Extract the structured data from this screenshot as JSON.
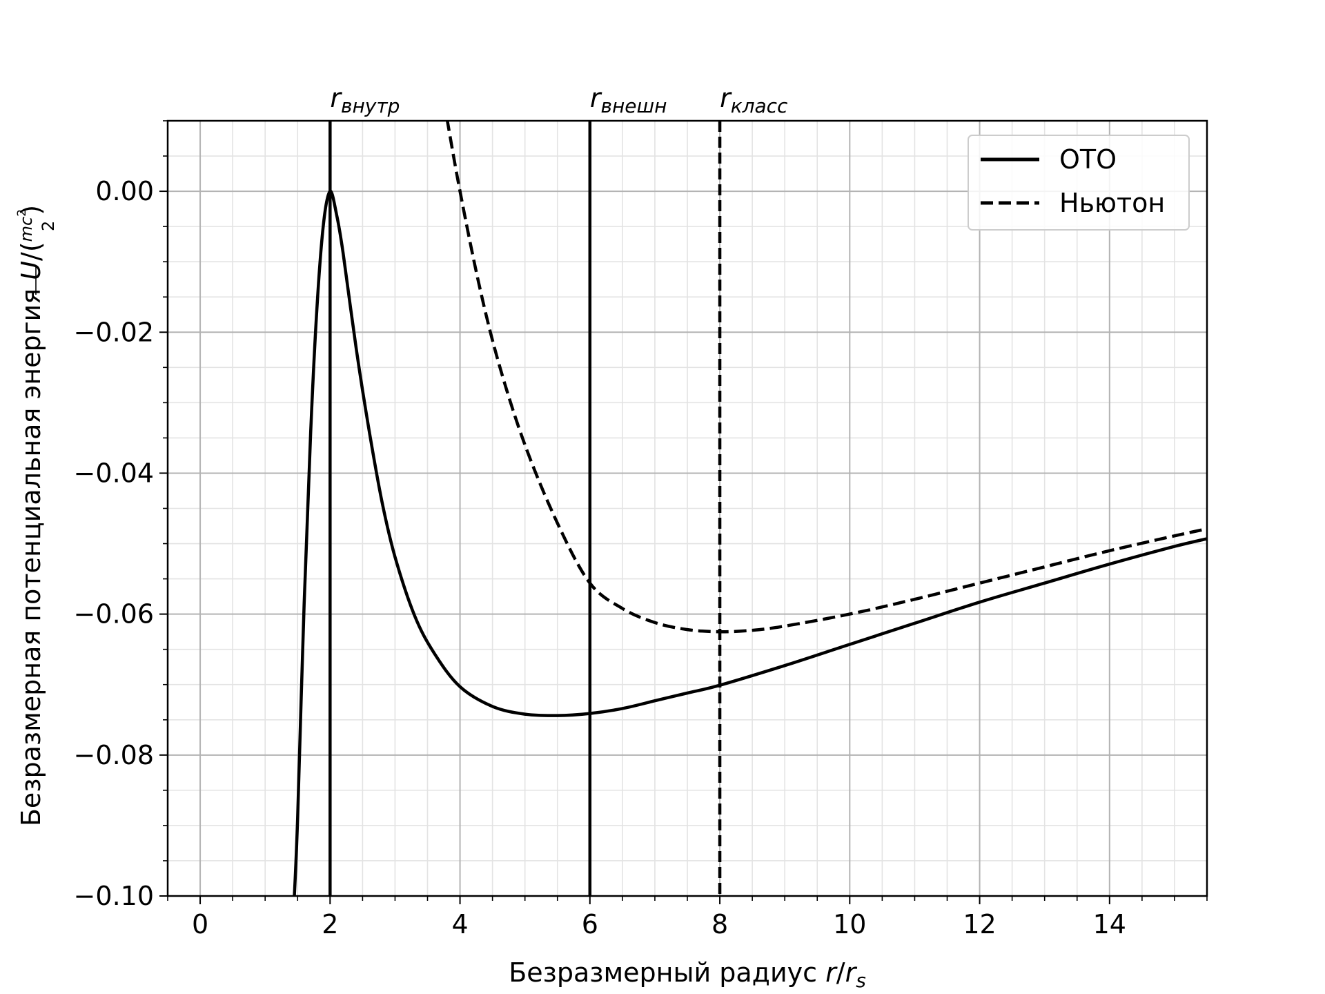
{
  "chart_data": {
    "type": "line",
    "xlabel": {
      "main": "Безразмерный радиус ",
      "var": "r",
      "sep": "/",
      "var2": "r",
      "sub2": "s"
    },
    "ylabel": {
      "main": "Безразмерная потенциальная энергия ",
      "var": "U",
      "frac_num": "mc",
      "frac_sup": "2",
      "frac_den": "2"
    },
    "xlim": [
      -0.5,
      15.5
    ],
    "ylim": [
      -0.1,
      0.01
    ],
    "xticks": [
      0,
      2,
      4,
      6,
      8,
      10,
      12,
      14
    ],
    "xtick_labels": [
      "0",
      "2",
      "4",
      "6",
      "8",
      "10",
      "12",
      "14"
    ],
    "yticks": [
      0.0,
      -0.02,
      -0.04,
      -0.06,
      -0.08,
      -0.1
    ],
    "ytick_labels": [
      "0.00",
      "−0.02",
      "−0.04",
      "−0.06",
      "−0.08",
      "−0.10"
    ],
    "grid": {
      "major": true,
      "minor": true
    },
    "legend": {
      "placement": "top-right"
    },
    "series": [
      {
        "name": "ОТО",
        "style": "solid",
        "color": "#000000",
        "x": [
          1.45,
          1.5,
          1.6,
          1.7,
          1.8,
          1.9,
          2.0,
          2.1,
          2.2,
          2.4,
          2.6,
          2.8,
          3.0,
          3.3,
          3.6,
          4.0,
          4.5,
          5.0,
          5.5,
          6.0,
          6.5,
          7.0,
          7.5,
          8.0,
          9.0,
          10.0,
          11.0,
          12.0,
          13.0,
          14.0,
          15.0,
          15.5
        ],
        "y": [
          -0.1001,
          -0.0889,
          -0.0586,
          -0.0344,
          -0.0162,
          -0.0045,
          0.0,
          -0.0033,
          -0.0087,
          -0.0222,
          -0.0339,
          -0.0441,
          -0.0519,
          -0.0602,
          -0.0655,
          -0.0703,
          -0.0731,
          -0.0742,
          -0.0744,
          -0.0741,
          -0.0734,
          -0.0723,
          -0.0712,
          -0.0701,
          -0.0673,
          -0.0643,
          -0.0613,
          -0.0583,
          -0.0556,
          -0.0529,
          -0.0504,
          -0.0493
        ]
      },
      {
        "name": "Ньютон",
        "style": "dashed",
        "color": "#000000",
        "x": [
          3.8,
          4.0,
          4.3,
          4.6,
          5.0,
          5.5,
          6.0,
          6.5,
          7.0,
          7.5,
          8.0,
          8.5,
          9.0,
          10.0,
          11.0,
          12.0,
          13.0,
          14.0,
          15.0,
          15.5
        ],
        "y": [
          0.0103,
          0.0,
          -0.0135,
          -0.0245,
          -0.036,
          -0.0471,
          -0.0556,
          -0.0592,
          -0.0612,
          -0.0622,
          -0.0625,
          -0.0623,
          -0.0617,
          -0.06,
          -0.0579,
          -0.0556,
          -0.0533,
          -0.051,
          -0.0489,
          -0.0479
        ]
      }
    ],
    "vlines": [
      {
        "x": 2,
        "style": "solid",
        "label_main": "r",
        "label_sub": "внутр"
      },
      {
        "x": 6,
        "style": "solid",
        "label_main": "r",
        "label_sub": "внешн"
      },
      {
        "x": 8,
        "style": "dashed",
        "label_main": "r",
        "label_sub": "класс"
      }
    ]
  }
}
